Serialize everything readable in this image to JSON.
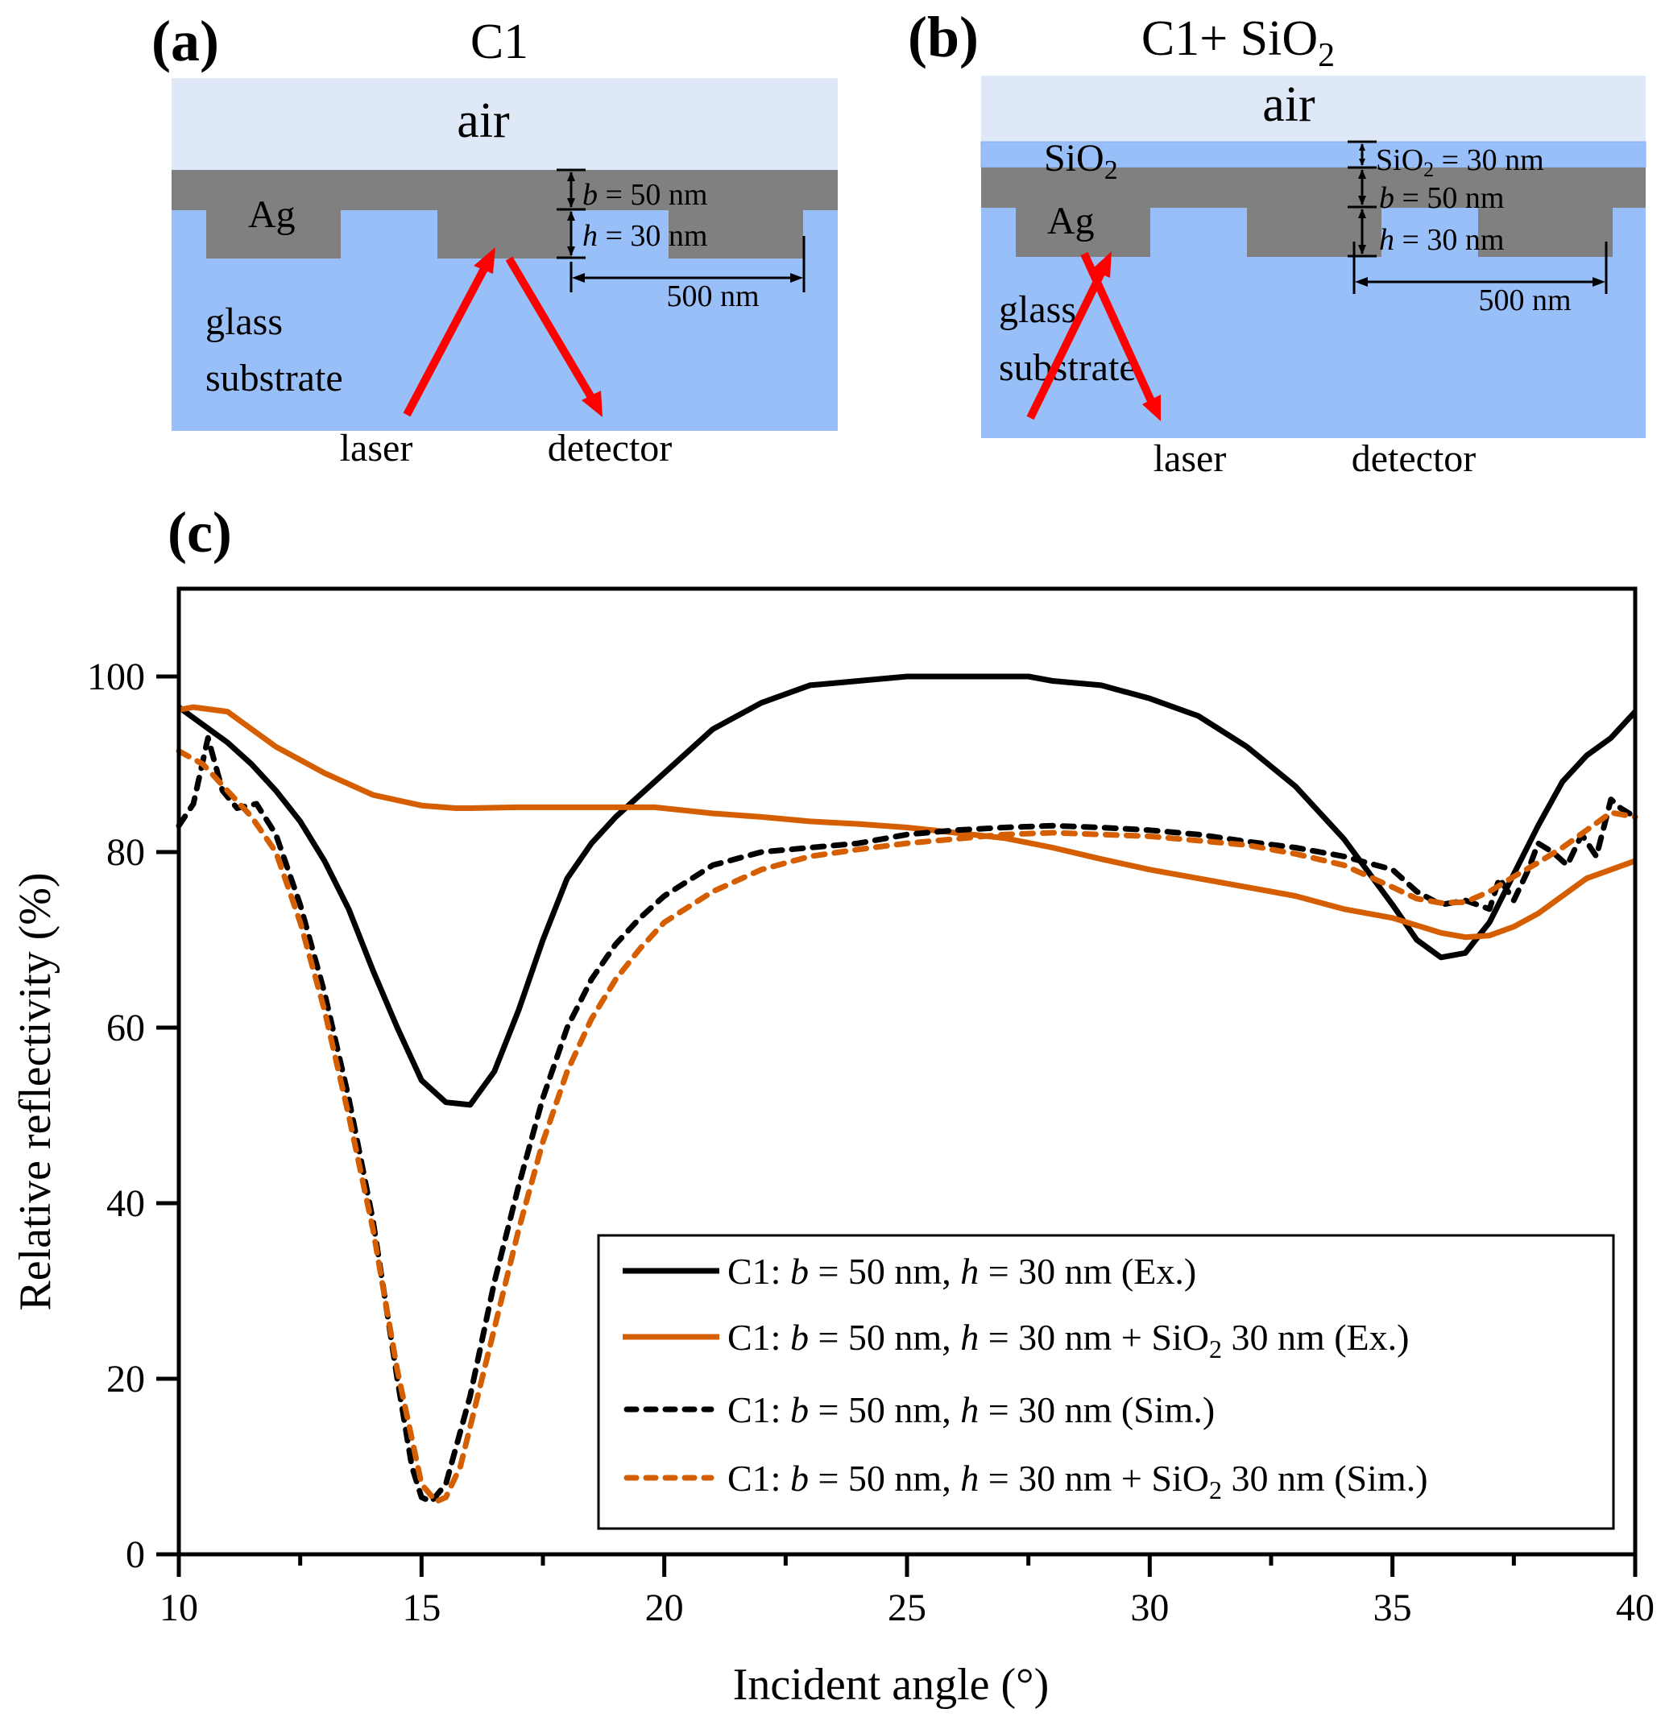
{
  "panel_a": {
    "label": "(a)",
    "title": "C1",
    "air": "air",
    "metal": "Ag",
    "substrate_line1": "glass",
    "substrate_line2": "substrate",
    "b_var": "b",
    "b_value": " = 50 nm",
    "h_var": "h",
    "h_value": " = 30 nm",
    "period": "500 nm",
    "laser": "laser",
    "detector": "detector"
  },
  "panel_b": {
    "label": "(b)",
    "title_main": "C1+ SiO",
    "title_sub": "2",
    "air": "air",
    "oxide_main": "SiO",
    "oxide_sub": "2",
    "metal": "Ag",
    "substrate_line1": "glass",
    "substrate_line2": "substrate",
    "sio2_main": "SiO",
    "sio2_sub": "2",
    "sio2_value": " = 30 nm",
    "b_var": "b",
    "b_value": " = 50 nm",
    "h_var": "h",
    "h_value": " = 30 nm",
    "period": "500 nm",
    "laser": "laser",
    "detector": "detector"
  },
  "colors": {
    "air": "#dfe8f7",
    "glass": "#99bff8",
    "silver": "#808080",
    "beam": "#ff0000",
    "series_black": "#000000",
    "series_orange": "#d55e00"
  },
  "chart_data": {
    "type": "line",
    "panel_label": "(c)",
    "title": "",
    "xlabel": "Incident angle (°)",
    "ylabel": "Relative reflectivity (%)",
    "xlim": [
      10,
      40
    ],
    "ylim": [
      0,
      110
    ],
    "x_ticks": [
      10,
      15,
      20,
      25,
      30,
      35,
      40
    ],
    "y_ticks": [
      0,
      20,
      40,
      60,
      80,
      100
    ],
    "grid": false,
    "legend_position": "bottom-right",
    "series": [
      {
        "name": "C1: b = 50 nm, h = 30 nm (Ex.)",
        "legend_parts": [
          "C1: ",
          "b",
          " = 50 nm, ",
          "h",
          " = 30 nm (Ex.)"
        ],
        "color": "#000000",
        "style": "solid",
        "x": [
          10,
          10.5,
          11,
          11.5,
          12,
          12.5,
          13,
          13.5,
          14,
          14.5,
          15,
          15.5,
          16,
          16.5,
          17,
          17.5,
          18,
          18.5,
          19,
          19.5,
          20,
          21,
          22,
          23,
          24,
          25,
          26,
          27,
          27.5,
          28,
          29,
          30,
          31,
          32,
          33,
          34,
          35,
          35.5,
          36,
          36.5,
          37,
          37.5,
          38,
          38.5,
          39,
          39.5,
          40
        ],
        "y": [
          96.5,
          94.5,
          92.5,
          90,
          87,
          83.5,
          79,
          73.5,
          66.5,
          60,
          54,
          51.5,
          51.2,
          55,
          62,
          70,
          77,
          81,
          84,
          86.5,
          89,
          94,
          97,
          99,
          99.5,
          100,
          100,
          100,
          100,
          99.5,
          99,
          97.5,
          95.5,
          92,
          87.5,
          81.5,
          74,
          70,
          68,
          68.5,
          72,
          77.5,
          83,
          88,
          91,
          93,
          96
        ]
      },
      {
        "name": "C1: b = 50 nm, h = 30 nm + SiO2 30 nm (Ex.)",
        "legend_parts": [
          "C1: ",
          "b",
          " = 50 nm, ",
          "h",
          " = 30 nm + SiO",
          "2",
          " 30 nm (Ex.)"
        ],
        "color": "#d55e00",
        "style": "solid",
        "x": [
          10,
          10.3,
          11,
          12,
          13,
          14,
          15,
          15.7,
          16,
          17,
          18,
          19,
          19.8,
          20.5,
          21,
          22,
          23,
          24,
          25,
          26,
          27,
          28,
          29,
          30,
          31,
          32,
          33,
          34,
          35,
          36,
          36.5,
          37,
          37.5,
          38,
          38.5,
          39,
          39.5,
          40
        ],
        "y": [
          96.2,
          96.5,
          96,
          92,
          89,
          86.5,
          85.3,
          85,
          85,
          85.1,
          85.1,
          85.1,
          85.1,
          84.7,
          84.4,
          84,
          83.5,
          83.2,
          82.8,
          82.2,
          81.6,
          80.5,
          79.2,
          78,
          77,
          76,
          75,
          73.5,
          72.5,
          70.8,
          70.3,
          70.5,
          71.5,
          73,
          75,
          77,
          78,
          79
        ]
      },
      {
        "name": "C1: b = 50 nm, h = 30 nm (Sim.)",
        "legend_parts": [
          "C1: ",
          "b",
          " = 50 nm, ",
          "h",
          " = 30 nm (Sim.)"
        ],
        "color": "#000000",
        "style": "dashed",
        "x": [
          10,
          10.3,
          10.6,
          10.9,
          11.2,
          11.6,
          12,
          12.5,
          13,
          13.5,
          14,
          14.5,
          14.8,
          15,
          15.2,
          15.5,
          16,
          16.5,
          17,
          17.5,
          18,
          18.5,
          19,
          19.5,
          20,
          21,
          22,
          23,
          24,
          25,
          26,
          27,
          28,
          29,
          30,
          31,
          32,
          33,
          34,
          35,
          35.5,
          36,
          36.5,
          37,
          37.2,
          37.5,
          37.8,
          38,
          38.3,
          38.6,
          38.9,
          39.2,
          39.5,
          39.7,
          40
        ],
        "y": [
          83,
          85.5,
          93,
          87,
          85,
          85.5,
          82,
          74,
          64,
          52,
          38,
          20,
          10,
          6.5,
          6,
          8,
          18,
          31,
          42,
          52,
          60,
          65.5,
          69.5,
          72.5,
          75,
          78.5,
          80,
          80.5,
          81,
          82,
          82.5,
          82.8,
          83,
          82.8,
          82.5,
          82,
          81.2,
          80.5,
          79.5,
          78,
          75.5,
          74,
          74.5,
          73.5,
          77,
          74.5,
          78,
          81,
          80,
          78.5,
          82,
          79.5,
          86,
          85,
          84
        ]
      },
      {
        "name": "C1: b = 50 nm, h = 30 nm + SiO2 30 nm (Sim.)",
        "legend_parts": [
          "C1: ",
          "b",
          " = 50 nm, ",
          "h",
          " = 30 nm + SiO",
          "2",
          " 30 nm (Sim.)"
        ],
        "color": "#d55e00",
        "style": "dashed",
        "x": [
          10,
          10.5,
          11,
          11.5,
          12,
          12.5,
          13,
          13.5,
          14,
          14.5,
          15,
          15.3,
          15.5,
          15.8,
          16.2,
          16.6,
          17,
          17.5,
          18,
          18.5,
          19,
          19.5,
          20,
          21,
          22,
          23,
          24,
          25,
          26,
          27,
          28,
          29,
          30,
          31,
          32,
          33,
          34,
          35,
          35.5,
          36,
          36.5,
          37,
          37.5,
          38,
          38.5,
          39,
          39.5,
          40
        ],
        "y": [
          91.5,
          90,
          87,
          84,
          80,
          72,
          62,
          50,
          37,
          21,
          8,
          6,
          6.5,
          10,
          19,
          28,
          37,
          47,
          55,
          61,
          65.5,
          69,
          72,
          75.5,
          78,
          79.5,
          80.3,
          81,
          81.5,
          82,
          82.2,
          82,
          81.8,
          81.3,
          80.8,
          79.8,
          78.5,
          76,
          74.7,
          74.2,
          74.3,
          75.5,
          77.2,
          78.8,
          80.5,
          82.5,
          84.5,
          84
        ]
      }
    ]
  }
}
